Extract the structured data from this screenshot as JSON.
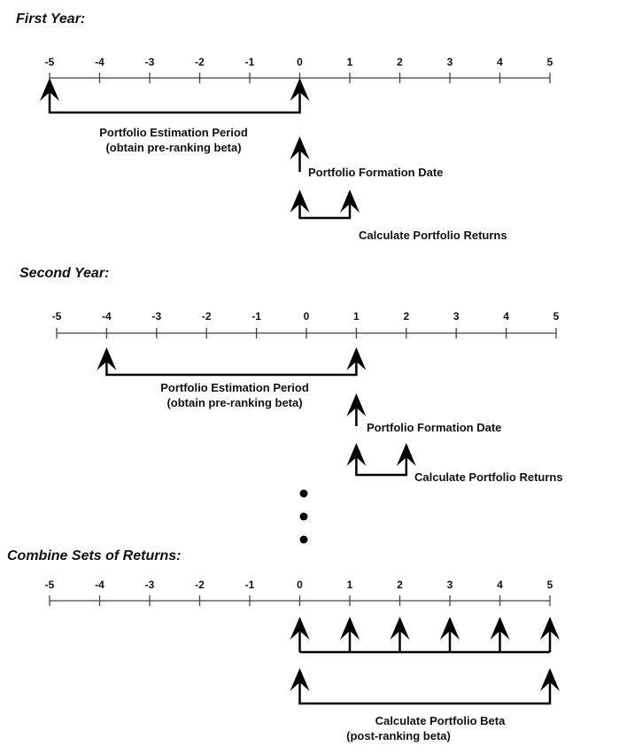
{
  "sections": [
    {
      "title": "First Year:",
      "estimation": {
        "from": -5,
        "to": 0,
        "label_lines": [
          "Portfolio Estimation Period",
          "(obtain pre-ranking beta)"
        ]
      },
      "formation": {
        "at": 0,
        "label": "Portfolio Formation Date"
      },
      "returns": {
        "from": 0,
        "to": 1,
        "label": "Calculate Portfolio Returns"
      }
    },
    {
      "title": "Second Year:",
      "estimation": {
        "from": -4,
        "to": 1,
        "label_lines": [
          "Portfolio Estimation Period",
          "(obtain pre-ranking beta)"
        ]
      },
      "formation": {
        "at": 1,
        "label": "Portfolio Formation Date"
      },
      "returns": {
        "from": 1,
        "to": 2,
        "label": "Calculate Portfolio Returns"
      }
    },
    {
      "title": "Combine Sets of Returns:",
      "return_marks": [
        0,
        1,
        2,
        3,
        4,
        5
      ],
      "beta": {
        "from": 0,
        "to": 5,
        "label_lines": [
          "Calculate Portfolio Beta",
          "(post-ranking beta)"
        ]
      }
    }
  ],
  "axis_ticks": [
    -5,
    -4,
    -3,
    -2,
    -1,
    0,
    1,
    2,
    3,
    4,
    5
  ],
  "ellipsis_dots": 3
}
